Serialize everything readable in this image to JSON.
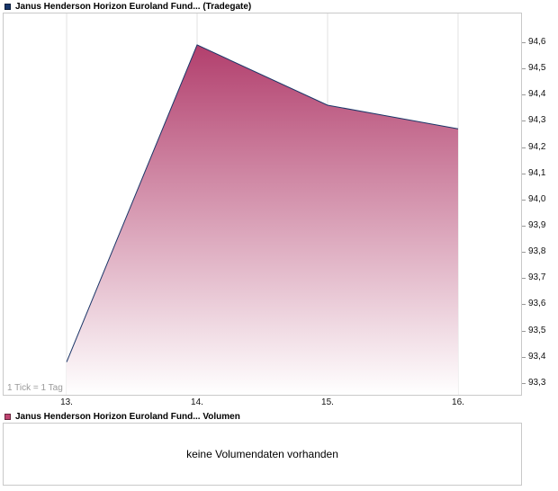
{
  "price_chart": {
    "legend_label": "Janus Henderson Horizon Euroland Fund... (Tradegate)",
    "legend_color": "#16366b",
    "tick_note": "1 Tick = 1 Tag"
  },
  "volume_section": {
    "legend_label": "Janus Henderson Horizon Euroland Fund... Volumen",
    "legend_color": "#bf4471",
    "message": "keine Volumendaten vorhanden"
  },
  "chart_data": {
    "type": "area",
    "title": "Janus Henderson Horizon Euroland Fund... (Tradegate)",
    "series_name": "Janus Henderson Horizon Euroland Fund (Tradegate)",
    "x": [
      13,
      14,
      15,
      16
    ],
    "x_tick_labels": [
      "13.",
      "14.",
      "15.",
      "16."
    ],
    "values": [
      93.38,
      94.59,
      94.36,
      94.27
    ],
    "y_ticks": [
      94.6,
      94.5,
      94.4,
      94.3,
      94.2,
      94.1,
      94.0,
      93.9,
      93.8,
      93.7,
      93.6,
      93.5,
      93.4,
      93.3
    ],
    "y_tick_labels": [
      "94,6",
      "94,5",
      "94,4",
      "94,3",
      "94,2",
      "94,1",
      "94,0",
      "93,9",
      "93,8",
      "93,7",
      "93,6",
      "93,5",
      "93,4",
      "93,3"
    ],
    "xlim": [
      12.517,
      16.483
    ],
    "ylim": [
      93.255,
      94.71
    ],
    "grid": "vertical",
    "legend_position": "top-left",
    "x_unit": "1 Tick = 1 Tag",
    "line_color": "#1b3668",
    "fill_top_color": "#b23f6d",
    "fill_bottom_color": "#ffffff",
    "grid_color": "#e2e2e2"
  }
}
